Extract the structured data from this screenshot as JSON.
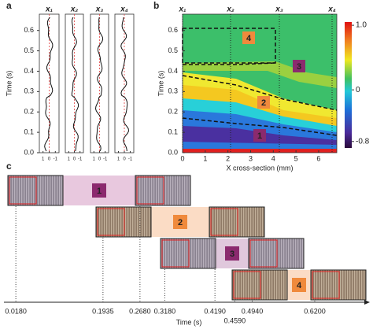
{
  "panels": {
    "a": {
      "label": "a",
      "columns": [
        "x₁",
        "x₂",
        "x₃",
        "x₄"
      ],
      "ylabel": "Time (s)",
      "ylim": [
        0,
        0.68
      ],
      "yticks": [
        {
          "value": 0,
          "label": "0.0"
        },
        {
          "value": 0.1,
          "label": "0.1"
        },
        {
          "value": 0.2,
          "label": "0.2"
        },
        {
          "value": 0.3,
          "label": "0.3"
        },
        {
          "value": 0.4,
          "label": "0.4"
        },
        {
          "value": 0.5,
          "label": "0.5"
        },
        {
          "value": 0.6,
          "label": "0.6"
        }
      ],
      "xlim": [
        1.6,
        -1.6
      ],
      "xticks": [
        1,
        0,
        -1
      ]
    },
    "b": {
      "label": "b",
      "columns": [
        "x₁",
        "x₂",
        "x₃",
        "x₄"
      ],
      "xlabel": "X cross-section (mm)",
      "ylabel": "Time (s)",
      "xlim": [
        0,
        6.8
      ],
      "xticks": [
        0,
        1,
        2,
        3,
        4,
        5,
        6
      ],
      "ylim": [
        0,
        0.68
      ],
      "yticks": [
        {
          "value": 0,
          "label": "0.0"
        },
        {
          "value": 0.1,
          "label": "0.1"
        },
        {
          "value": 0.2,
          "label": "0.2"
        },
        {
          "value": 0.3,
          "label": "0.3"
        },
        {
          "value": 0.4,
          "label": "0.4"
        },
        {
          "value": 0.5,
          "label": "0.5"
        },
        {
          "value": 0.6,
          "label": "0.6"
        }
      ],
      "colorbar_lim": [
        -0.9,
        1.05
      ],
      "colorbar_ticks": [
        {
          "value": 1,
          "label": "1.0"
        },
        0,
        -0.8
      ],
      "regions": [
        "4",
        "3",
        "2",
        "1"
      ]
    },
    "c": {
      "label": "c",
      "xlabel": "Time (s)",
      "xlim": [
        -0.006,
        0.731
      ],
      "xticks": [
        {
          "value": 0.018,
          "label": "0.0180"
        },
        {
          "value": 0.1935,
          "label": "0.1935"
        },
        {
          "value": 0.268,
          "label": "0.2680"
        },
        {
          "value": 0.318,
          "label": "0.3180"
        },
        {
          "value": 0.419,
          "label": "0.4190"
        },
        {
          "value": 0.459,
          "label": "0.4590"
        },
        {
          "value": 0.494,
          "label": "0.4940"
        },
        {
          "value": 0.62,
          "label": "0.6200"
        }
      ],
      "stages": [
        "1",
        "2",
        "3",
        "4"
      ]
    }
  }
}
